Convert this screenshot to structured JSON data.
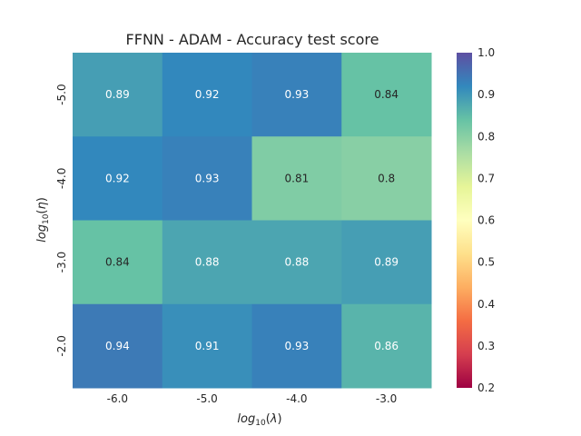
{
  "chart_data": {
    "type": "heatmap",
    "title": "FFNN - ADAM - Accuracy test score",
    "xlabel": "log10(λ)",
    "ylabel": "log10(η)",
    "x_categories": [
      "-6.0",
      "-5.0",
      "-4.0",
      "-3.0"
    ],
    "y_categories": [
      "-5.0",
      "-4.0",
      "-3.0",
      "-2.0"
    ],
    "values": [
      [
        0.89,
        0.92,
        0.93,
        0.84
      ],
      [
        0.92,
        0.93,
        0.81,
        0.8
      ],
      [
        0.84,
        0.88,
        0.88,
        0.89
      ],
      [
        0.94,
        0.91,
        0.93,
        0.86
      ]
    ],
    "annotations": [
      [
        "0.89",
        "0.92",
        "0.93",
        "0.84"
      ],
      [
        "0.92",
        "0.93",
        "0.81",
        "0.8"
      ],
      [
        "0.84",
        "0.88",
        "0.88",
        "0.89"
      ],
      [
        "0.94",
        "0.91",
        "0.93",
        "0.86"
      ]
    ],
    "colormap": "Spectral",
    "vmin": 0.2,
    "vmax": 1.0,
    "colorbar_ticks": [
      "0.2",
      "0.3",
      "0.4",
      "0.5",
      "0.6",
      "0.7",
      "0.8",
      "0.9",
      "1.0"
    ],
    "grid": false
  }
}
